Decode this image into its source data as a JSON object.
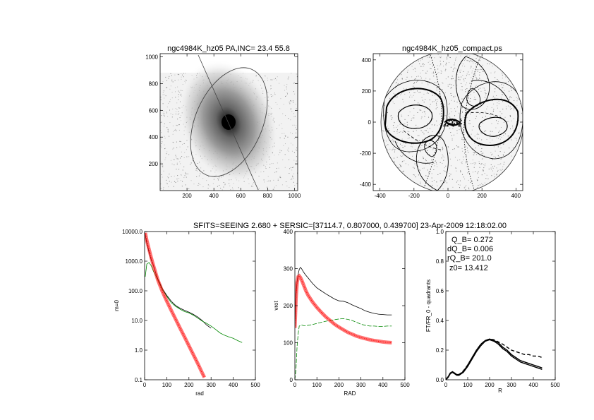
{
  "header": {
    "run_info": "SFITS=SEEING 2.680 + SERSIC=[37114.7, 0.807000, 0.439700]  23-Apr-2009 12:18:02.00"
  },
  "colors": {
    "green": "#008800",
    "red": "#ff0000",
    "black": "#000000",
    "gray": "#888888"
  },
  "annotations": {
    "q_b": "Q_B=  0.272",
    "dq_b": "dQ_B=  0.006",
    "rq_b": "rQ_B=  201.0",
    "z0": "z0= 13.412"
  },
  "chart_data": [
    {
      "type": "heatmap",
      "title": "ngc4984K_hz05 PA,INC= 23.4 55.8",
      "xlabel": "",
      "ylabel": "",
      "xlim": [
        0,
        1024
      ],
      "ylim": [
        0,
        1024
      ],
      "x_ticks": [
        200,
        400,
        600,
        800,
        1000
      ],
      "y_ticks": [
        200,
        400,
        600,
        800,
        1000
      ],
      "galaxy_center": [
        512,
        512
      ],
      "ellipse": {
        "center": [
          512,
          512
        ],
        "semi_major": 430,
        "semi_minor": 250,
        "angle_deg_from_vertical": 23.4
      },
      "grid": false
    },
    {
      "type": "heatmap",
      "title": "ngc4984K_hz05_compact.ps",
      "xlabel": "",
      "ylabel": "",
      "xlim": [
        -440,
        440
      ],
      "ylim": [
        -440,
        440
      ],
      "x_ticks": [
        -400,
        -200,
        0,
        200,
        400
      ],
      "y_ticks": [
        -400,
        -200,
        0,
        200,
        400
      ],
      "disk_radius": 430,
      "grid": false
    },
    {
      "type": "line",
      "xlabel": "rad",
      "ylabel": "m=0",
      "xlim": [
        0,
        500
      ],
      "ylim": [
        0.1,
        10000
      ],
      "yscale": "log",
      "x_ticks": [
        0,
        100,
        200,
        300,
        400,
        500
      ],
      "y_ticks": [
        "0.1",
        "1.0",
        "10.0",
        "100.0",
        "1000.0",
        "10000.0"
      ],
      "series": [
        {
          "color": "black",
          "x": [
            3,
            10,
            20,
            30,
            40,
            50,
            60,
            80,
            100,
            120,
            140,
            160,
            180,
            200,
            220,
            240,
            260,
            280,
            300
          ],
          "y": [
            8000,
            4000,
            2000,
            1100,
            700,
            400,
            250,
            120,
            70,
            45,
            32,
            26,
            22,
            19,
            16,
            13,
            10,
            7,
            5.5
          ]
        },
        {
          "color": "green",
          "x": [
            3,
            10,
            20,
            30,
            40,
            50,
            60,
            80,
            100,
            120,
            140,
            160,
            180,
            200,
            220,
            240,
            260,
            280,
            300,
            320,
            340,
            360,
            380,
            400,
            420,
            440
          ],
          "y": [
            300,
            800,
            900,
            700,
            450,
            330,
            230,
            110,
            65,
            40,
            30,
            24,
            20,
            18,
            15,
            12,
            9.5,
            8,
            6.5,
            5,
            3.8,
            3.2,
            2.8,
            2.5,
            2.1,
            1.8
          ]
        },
        {
          "color": "red",
          "x": [
            3,
            10,
            20,
            30,
            40,
            50,
            60,
            80,
            100,
            120,
            140,
            160,
            180,
            200,
            220,
            240,
            260,
            270
          ],
          "y": [
            9000,
            5000,
            2500,
            1300,
            700,
            400,
            230,
            95,
            45,
            22,
            11,
            5.5,
            2.8,
            1.4,
            0.7,
            0.35,
            0.17,
            0.12
          ]
        }
      ],
      "grid": false
    },
    {
      "type": "line",
      "xlabel": "RAD",
      "ylabel": "vrot",
      "xlim": [
        0,
        500
      ],
      "ylim": [
        0,
        400
      ],
      "x_ticks": [
        0,
        100,
        200,
        300,
        400,
        500
      ],
      "y_ticks": [
        0,
        100,
        200,
        300,
        400
      ],
      "series": [
        {
          "color": "black",
          "x": [
            0,
            5,
            10,
            15,
            20,
            25,
            30,
            40,
            50,
            60,
            80,
            100,
            120,
            140,
            160,
            180,
            200,
            220,
            240,
            260,
            280,
            300,
            320,
            340,
            360,
            380,
            400,
            420,
            440
          ],
          "y": [
            150,
            230,
            265,
            285,
            298,
            303,
            300,
            290,
            282,
            275,
            260,
            248,
            240,
            232,
            225,
            218,
            213,
            212,
            208,
            202,
            197,
            192,
            186,
            182,
            179,
            177,
            176,
            175,
            175
          ]
        },
        {
          "color": "green",
          "x": [
            0,
            5,
            10,
            15,
            20,
            30,
            40,
            50,
            60,
            80,
            100,
            120,
            140,
            160,
            180,
            200,
            220,
            240,
            260,
            280,
            300,
            320,
            340,
            360,
            380,
            400,
            420,
            440
          ],
          "y": [
            0,
            30,
            90,
            125,
            145,
            148,
            146,
            146,
            147,
            149,
            152,
            155,
            158,
            160,
            162,
            164,
            165,
            163,
            160,
            155,
            150,
            147,
            145,
            145,
            144,
            144,
            145,
            145
          ]
        },
        {
          "color": "red",
          "x": [
            0,
            5,
            10,
            15,
            20,
            25,
            30,
            40,
            50,
            60,
            80,
            100,
            120,
            140,
            160,
            180,
            200,
            220,
            240,
            260,
            280,
            300,
            320,
            340,
            360,
            380,
            400,
            420,
            440
          ],
          "y": [
            140,
            220,
            262,
            278,
            280,
            276,
            270,
            255,
            240,
            228,
            210,
            195,
            182,
            170,
            160,
            150,
            142,
            135,
            128,
            123,
            118,
            114,
            111,
            108,
            106,
            104,
            102,
            101,
            100
          ]
        }
      ],
      "grid": false
    },
    {
      "type": "line",
      "xlabel": "R",
      "ylabel": "FT/FR_0 - quadrants",
      "xlim": [
        0,
        500
      ],
      "ylim": [
        0,
        1
      ],
      "x_ticks": [
        0,
        100,
        200,
        300,
        400,
        500
      ],
      "y_ticks": [
        "0.0",
        "0.2",
        "0.4",
        "0.6",
        "0.8",
        "1.0"
      ],
      "series": [
        {
          "color": "black",
          "x": [
            0,
            10,
            20,
            30,
            40,
            50,
            60,
            80,
            100,
            120,
            140,
            160,
            180,
            200,
            220,
            240,
            260,
            280,
            300,
            320,
            340,
            360,
            380,
            400,
            420,
            440
          ],
          "y": [
            0.0,
            0.015,
            0.04,
            0.05,
            0.04,
            0.03,
            0.03,
            0.05,
            0.09,
            0.14,
            0.19,
            0.23,
            0.26,
            0.27,
            0.26,
            0.24,
            0.21,
            0.19,
            0.16,
            0.14,
            0.12,
            0.11,
            0.1,
            0.09,
            0.08,
            0.07
          ]
        },
        {
          "color": "black",
          "x": [
            0,
            10,
            20,
            30,
            40,
            50,
            60,
            80,
            100,
            120,
            140,
            160,
            180,
            200,
            220,
            240,
            260,
            280,
            300,
            320,
            340,
            360,
            380,
            400,
            420,
            440
          ],
          "y": [
            0.0,
            0.02,
            0.045,
            0.055,
            0.045,
            0.035,
            0.035,
            0.055,
            0.1,
            0.15,
            0.2,
            0.24,
            0.265,
            0.275,
            0.265,
            0.25,
            0.22,
            0.2,
            0.17,
            0.15,
            0.13,
            0.12,
            0.11,
            0.1,
            0.09,
            0.08
          ]
        },
        {
          "color": "black",
          "dashed": true,
          "x": [
            0,
            10,
            20,
            30,
            40,
            50,
            60,
            80,
            100,
            120,
            140,
            160,
            180,
            200,
            220,
            240,
            260,
            280,
            300,
            320,
            340,
            360,
            380,
            400,
            420,
            440
          ],
          "y": [
            0.0,
            0.02,
            0.045,
            0.055,
            0.045,
            0.035,
            0.035,
            0.06,
            0.1,
            0.15,
            0.2,
            0.24,
            0.265,
            0.275,
            0.27,
            0.255,
            0.24,
            0.22,
            0.2,
            0.19,
            0.18,
            0.17,
            0.17,
            0.16,
            0.16,
            0.15
          ]
        }
      ],
      "grid": false
    }
  ]
}
